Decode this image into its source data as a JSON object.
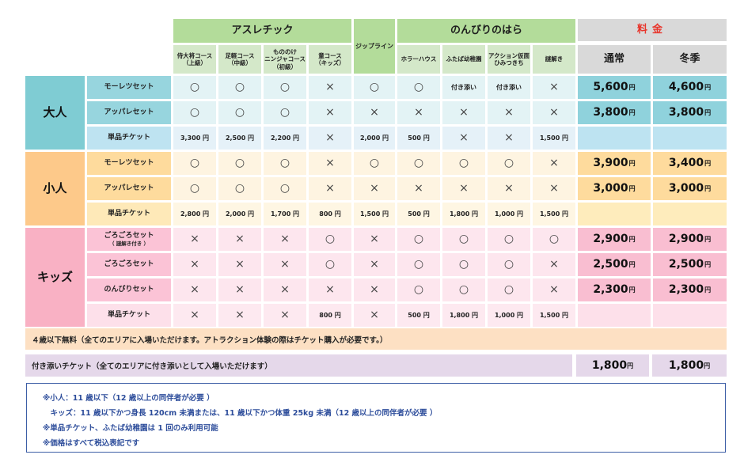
{
  "header": {
    "athletic": "アスレチック",
    "athletic_courses": [
      [
        "侍大将コース",
        "（上級）"
      ],
      [
        "足軽コース",
        "（中級）"
      ],
      [
        "もののけ",
        "ニンジャコース",
        "（初級）"
      ],
      [
        "童コース",
        "（キッズ）"
      ]
    ],
    "zipline": "ジップライン",
    "nonbiri": "のんびりのはら",
    "nonbiri_items": [
      [
        "ホラーハウス"
      ],
      [
        "ふたば幼稚園"
      ],
      [
        "アクション仮面",
        "ひみつきち"
      ],
      [
        "謎解き"
      ]
    ],
    "price": "料金",
    "price_normal": "通常",
    "price_winter": "冬季"
  },
  "currency": "円",
  "groups": [
    {
      "name": "大人",
      "colors": {
        "cat": "#7fccd3",
        "set": "#97d5de",
        "ticket": "#bee3f1",
        "cell": "#e3f3f5",
        "ticketcell": "#e5f1f8",
        "price": "#8fd2dc",
        "ticketprice": "#bde3f1"
      },
      "rows": [
        {
          "name": "モーレツセット",
          "cells": [
            "○",
            "○",
            "○",
            "×",
            "○",
            "○",
            "付き添い",
            "付き添い",
            "×"
          ],
          "normal": "5,600",
          "winter": "4,600"
        },
        {
          "name": "アッパレセット",
          "cells": [
            "○",
            "○",
            "○",
            "×",
            "×",
            "×",
            "×",
            "×",
            "×"
          ],
          "normal": "3,800",
          "winter": "3,800"
        },
        {
          "name": "単品チケット",
          "ticket": true,
          "cells": [
            "3,300 円",
            "2,500 円",
            "2,200 円",
            "×",
            "2,000 円",
            "500 円",
            "×",
            "×",
            "1,500 円"
          ],
          "normal": "",
          "winter": ""
        }
      ]
    },
    {
      "name": "小人",
      "colors": {
        "cat": "#fdc98a",
        "set": "#fedb9d",
        "ticket": "#fee9b8",
        "cell": "#fef4e1",
        "ticketcell": "#fef6e3",
        "price": "#fedb9d",
        "ticketprice": "#feecbc"
      },
      "rows": [
        {
          "name": "モーレツセット",
          "cells": [
            "○",
            "○",
            "○",
            "×",
            "○",
            "○",
            "○",
            "○",
            "×"
          ],
          "normal": "3,900",
          "winter": "3,400"
        },
        {
          "name": "アッパレセット",
          "cells": [
            "○",
            "○",
            "○",
            "×",
            "×",
            "×",
            "×",
            "×",
            "×"
          ],
          "normal": "3,000",
          "winter": "3,000"
        },
        {
          "name": "単品チケット",
          "ticket": true,
          "cells": [
            "2,800 円",
            "2,000 円",
            "1,700 円",
            "800 円",
            "1,500 円",
            "500 円",
            "1,800 円",
            "1,000 円",
            "1,500 円"
          ],
          "normal": "",
          "winter": ""
        }
      ]
    },
    {
      "name": "キッズ",
      "colors": {
        "cat": "#f9b1c4",
        "set": "#fbc3d6",
        "ticket": "#fde0ea",
        "cell": "#fde6ee",
        "ticketcell": "#fde9f0",
        "price": "#f9bed1",
        "ticketprice": "#fde0ea"
      },
      "rows": [
        {
          "name": "ごろごろセット",
          "sub": "（ 謎解き付き ）",
          "cells": [
            "×",
            "×",
            "×",
            "○",
            "×",
            "○",
            "○",
            "○",
            "○"
          ],
          "normal": "2,900",
          "winter": "2,900"
        },
        {
          "name": "ごろごろセット",
          "cells": [
            "×",
            "×",
            "×",
            "○",
            "×",
            "○",
            "○",
            "○",
            "×"
          ],
          "normal": "2,500",
          "winter": "2,500"
        },
        {
          "name": "のんびりセット",
          "cells": [
            "×",
            "×",
            "×",
            "×",
            "×",
            "○",
            "○",
            "○",
            "×"
          ],
          "normal": "2,300",
          "winter": "2,300"
        },
        {
          "name": "単品チケット",
          "ticket": true,
          "cells": [
            "×",
            "×",
            "×",
            "800 円",
            "×",
            "500 円",
            "1,800 円",
            "1,000 円",
            "1,500 円"
          ],
          "normal": "",
          "winter": ""
        }
      ]
    }
  ],
  "free_note": "４歳以下無料（全てのエリアに入場いただけます。アトラクション体験の際はチケット購入が必要です。）",
  "companion": {
    "label": "付き添いチケット（全てのエリアに付き添いとして入場いただけます）",
    "normal": "1,800",
    "winter": "1,800"
  },
  "notes": [
    "※小人：11 歳以下（12 歳以上の同伴者が必要 ）",
    "　キッズ：11 歳以下かつ身長 120cm 未満または、11 歳以下かつ体重 25kg 未満（12 歳以上の同伴者が必要 ）",
    "※単品チケット、ふたば幼稚園は 1 回のみ利用可能",
    "※価格はすべて税込表記です"
  ]
}
